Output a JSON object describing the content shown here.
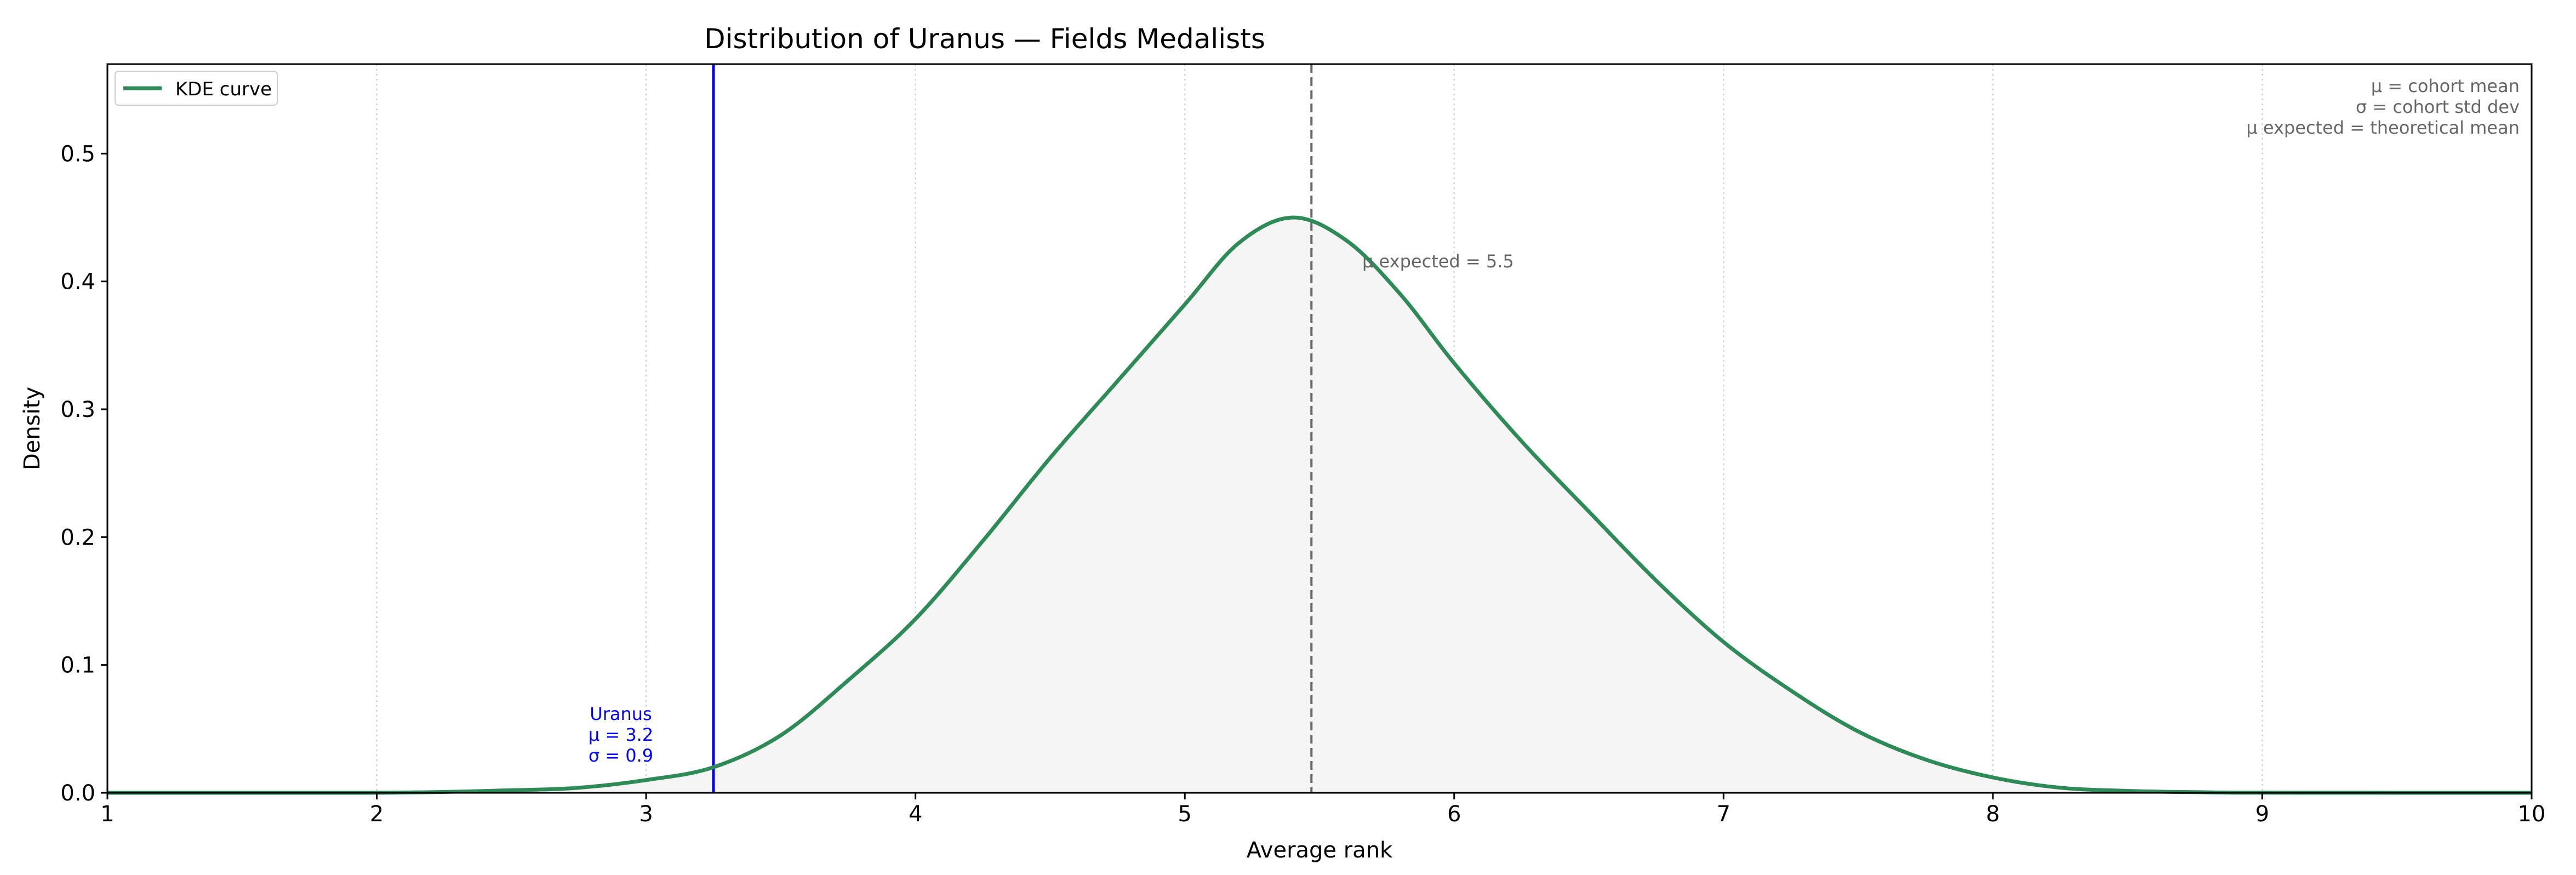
{
  "chart_data": {
    "type": "area",
    "title": "Distribution of Uranus — Fields Medalists",
    "xlabel": "Average rank",
    "ylabel": "Density",
    "xlim": [
      1,
      10
    ],
    "ylim": [
      0,
      0.57
    ],
    "xticks": [
      1,
      2,
      3,
      4,
      5,
      6,
      7,
      8,
      9,
      10
    ],
    "xtick_labels": [
      "1",
      "2",
      "3",
      "4",
      "5",
      "6",
      "7",
      "8",
      "9",
      "10"
    ],
    "yticks": [
      0.0,
      0.1,
      0.2,
      0.3,
      0.4,
      0.5
    ],
    "ytick_labels": [
      "0.0",
      "0.1",
      "0.2",
      "0.3",
      "0.4",
      "0.5"
    ],
    "grid": "vertical dotted",
    "legend": {
      "position": "top-left",
      "entries": [
        "KDE curve"
      ]
    },
    "series": [
      {
        "name": "KDE curve",
        "color": "#2e8b57",
        "fill": "#f5f5f5",
        "x": [
          1.0,
          2.0,
          2.5,
          2.75,
          3.0,
          3.25,
          3.5,
          3.75,
          4.0,
          4.25,
          4.5,
          4.75,
          5.0,
          5.2,
          5.4,
          5.6,
          5.8,
          6.0,
          6.25,
          6.5,
          6.75,
          7.0,
          7.25,
          7.5,
          7.75,
          8.0,
          8.25,
          8.5,
          8.75,
          9.0,
          10.0
        ],
        "y": [
          0.0,
          0.0,
          0.002,
          0.004,
          0.01,
          0.02,
          0.045,
          0.088,
          0.136,
          0.197,
          0.262,
          0.322,
          0.382,
          0.43,
          0.45,
          0.432,
          0.39,
          0.336,
          0.275,
          0.22,
          0.166,
          0.118,
          0.08,
          0.048,
          0.026,
          0.012,
          0.004,
          0.0015,
          0.0005,
          0.0001,
          0.0
        ]
      }
    ],
    "vlines": [
      {
        "name": "Uranus",
        "x": 3.25,
        "color": "#0000ff",
        "style": "solid"
      },
      {
        "name": "μ expected",
        "x": 5.47,
        "color": "#666666",
        "style": "dashed"
      }
    ],
    "annotations": {
      "uranus": {
        "lines": [
          "Uranus",
          "μ = 3.2",
          "σ = 0.9"
        ],
        "color": "#0000ff"
      },
      "expected": {
        "text": "μ expected = 5.5",
        "color": "#666666"
      },
      "key": {
        "lines": [
          "μ = cohort mean",
          "σ = cohort std dev",
          "μ expected = theoretical mean"
        ],
        "color": "#666666"
      }
    }
  }
}
